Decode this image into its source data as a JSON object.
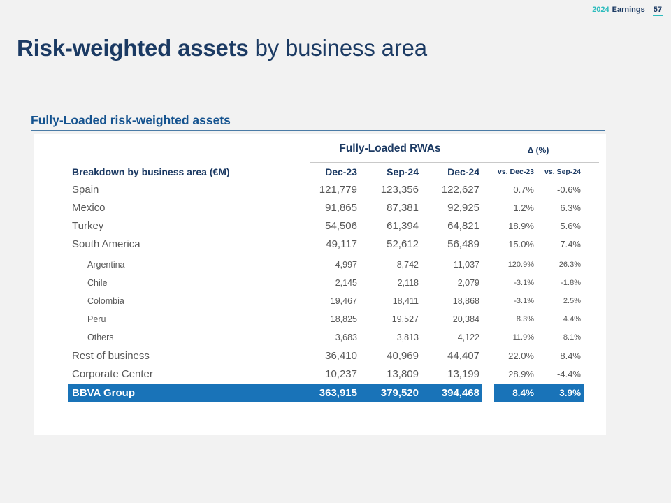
{
  "header": {
    "year": "2024",
    "label": "Earnings",
    "page_number": "57"
  },
  "title": {
    "bold": "Risk-weighted assets",
    "rest": " by business area"
  },
  "section_heading": "Fully-Loaded risk-weighted assets",
  "table": {
    "row_header": "Breakdown by business area (€M)",
    "group_rwas": "Fully-Loaded RWAs",
    "group_delta": "Δ (%)",
    "columns": [
      "Dec-23",
      "Sep-24",
      "Dec-24",
      "vs. Dec-23",
      "vs. Sep-24"
    ],
    "rows": [
      {
        "label": "Spain",
        "indent": false,
        "values": [
          "121,779",
          "123,356",
          "122,627"
        ],
        "deltas": [
          "0.7%",
          "-0.6%"
        ]
      },
      {
        "label": "Mexico",
        "indent": false,
        "values": [
          "91,865",
          "87,381",
          "92,925"
        ],
        "deltas": [
          "1.2%",
          "6.3%"
        ]
      },
      {
        "label": "Turkey",
        "indent": false,
        "values": [
          "54,506",
          "61,394",
          "64,821"
        ],
        "deltas": [
          "18.9%",
          "5.6%"
        ]
      },
      {
        "label": "South America",
        "indent": false,
        "values": [
          "49,117",
          "52,612",
          "56,489"
        ],
        "deltas": [
          "15.0%",
          "7.4%"
        ]
      },
      {
        "label": "Argentina",
        "indent": true,
        "values": [
          "4,997",
          "8,742",
          "11,037"
        ],
        "deltas": [
          "120.9%",
          "26.3%"
        ]
      },
      {
        "label": "Chile",
        "indent": true,
        "values": [
          "2,145",
          "2,118",
          "2,079"
        ],
        "deltas": [
          "-3.1%",
          "-1.8%"
        ]
      },
      {
        "label": "Colombia",
        "indent": true,
        "values": [
          "19,467",
          "18,411",
          "18,868"
        ],
        "deltas": [
          "-3.1%",
          "2.5%"
        ]
      },
      {
        "label": "Peru",
        "indent": true,
        "values": [
          "18,825",
          "19,527",
          "20,384"
        ],
        "deltas": [
          "8.3%",
          "4.4%"
        ]
      },
      {
        "label": "Others",
        "indent": true,
        "values": [
          "3,683",
          "3,813",
          "4,122"
        ],
        "deltas": [
          "11.9%",
          "8.1%"
        ]
      },
      {
        "label": "Rest of business",
        "indent": false,
        "values": [
          "36,410",
          "40,969",
          "44,407"
        ],
        "deltas": [
          "22.0%",
          "8.4%"
        ]
      },
      {
        "label": "Corporate Center",
        "indent": false,
        "values": [
          "10,237",
          "13,809",
          "13,199"
        ],
        "deltas": [
          "28.9%",
          "-4.4%"
        ]
      }
    ],
    "total": {
      "label": "BBVA Group",
      "values": [
        "363,915",
        "379,520",
        "394,468"
      ],
      "deltas": [
        "8.4%",
        "3.9%"
      ]
    }
  },
  "colors": {
    "background": "#f2f2f2",
    "panel": "#ffffff",
    "navy": "#1b3a63",
    "heading_blue": "#15538f",
    "heading_rule": "#4a7ba6",
    "row_text_gray": "#575757",
    "header_divider": "#c9c9c9",
    "total_bar_blue": "#1973b8",
    "accent_teal": "#2dbcbd"
  }
}
